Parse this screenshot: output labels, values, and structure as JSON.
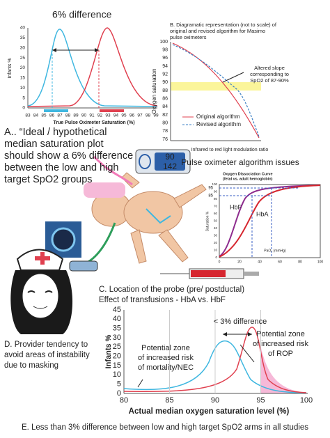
{
  "panel_a": {
    "title": "6% difference",
    "y_label": "Infants %",
    "x_label": "True Pulse Oximeter Saturation (%)",
    "xticks": [
      83,
      84,
      85,
      86,
      87,
      88,
      89,
      90,
      91,
      92,
      93,
      94,
      95,
      96,
      97,
      98,
      99
    ],
    "yticks": [
      0,
      5,
      10,
      15,
      20,
      25,
      30,
      35,
      40
    ]
  },
  "panel_b": {
    "title": [
      "B. Diagramatic representation (not to scale) of",
      "original and revised algorithm for Masimo",
      "pulse oximeters"
    ],
    "y_label": "Oxygen saturation",
    "yticks": [
      100,
      98,
      96,
      94,
      92,
      90,
      88,
      86,
      84,
      82,
      80,
      78,
      76
    ],
    "annotation": [
      "Altered slope",
      "corresponding to",
      "SpO2 of 87-90%"
    ],
    "legend": [
      "Original algorithm",
      "Revised algorithm"
    ],
    "x_label": "Infrared to red light modulation ratio"
  },
  "caption_a": [
    "A.. “Ideal / hypothetical",
    "median saturation plot",
    "should show a 6% difference",
    "between the low and high",
    "target SpO2 groups"
  ],
  "heading_b": "Pulse oximeter algorithm issues",
  "monitor": [
    "90",
    "142"
  ],
  "dissociation": {
    "title": [
      "Oxygen Dissociation Curve",
      "(fetal vs. adult hemoglobin)"
    ],
    "y_label": "Saturation %",
    "x_label": "PaO₂ (mmHg)",
    "xticks": [
      0,
      20,
      40,
      60,
      80,
      100
    ],
    "yticks": [
      0,
      10,
      20,
      30,
      40,
      50,
      60,
      70,
      80,
      90,
      100
    ],
    "markers": [
      "95",
      "85"
    ],
    "curves": [
      "HbF",
      "HbA"
    ]
  },
  "caption_c": [
    "C. Location of the probe (pre/ postductal)",
    "Effect of transfusions - HbA vs. HbF"
  ],
  "caption_d": [
    "D. Provider tendency to",
    "avoid areas of instability",
    "due to masking"
  ],
  "panel_e": {
    "y_label": "Infants %",
    "x_label": "Actual median oxygen saturation level (%)",
    "yticks": [
      0,
      5,
      10,
      15,
      20,
      25,
      30,
      35,
      40,
      45
    ],
    "xticks": [
      80,
      85,
      90,
      95,
      100
    ],
    "difference": "< 3% difference",
    "left_zone": [
      "Potential zone",
      "of increased risk",
      "of mortality/NEC"
    ],
    "right_zone": [
      "Potential zone",
      "of increased risk",
      "of ROP"
    ]
  },
  "footer": "E. Less than 3% difference between low and high target SpO2 arms in all studies"
}
